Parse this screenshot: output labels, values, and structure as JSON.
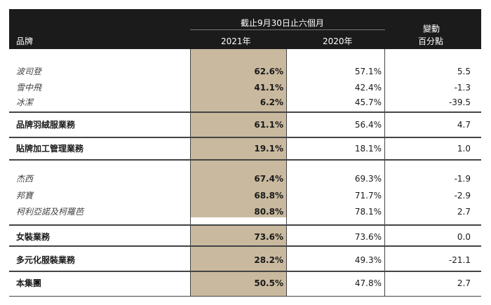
{
  "header": {
    "period": "截止9月30日止六個月",
    "brand_label": "品牌",
    "col_2021": "2021年",
    "col_2020": "2020年",
    "change_line1": "變動",
    "change_line2": "百分點"
  },
  "rows": [
    {
      "label": "波司登",
      "v2021": "62.6%",
      "v2020": "57.1%",
      "change": "5.5"
    },
    {
      "label": "雪中飛",
      "v2021": "41.1%",
      "v2020": "42.4%",
      "change": "-1.3"
    },
    {
      "label": "冰潔",
      "v2021": "6.2%",
      "v2020": "45.7%",
      "change": "-39.5"
    },
    {
      "label": "品牌羽絨服業務",
      "v2021": "61.1%",
      "v2020": "56.4%",
      "change": "4.7"
    },
    {
      "label": "貼牌加工管理業務",
      "v2021": "19.1%",
      "v2020": "18.1%",
      "change": "1.0"
    },
    {
      "label": "杰西",
      "v2021": "67.4%",
      "v2020": "69.3%",
      "change": "-1.9"
    },
    {
      "label": "邦寶",
      "v2021": "68.8%",
      "v2020": "71.7%",
      "change": "-2.9"
    },
    {
      "label": "柯利亞諾及柯羅芭",
      "v2021": "80.8%",
      "v2020": "78.1%",
      "change": "2.7"
    },
    {
      "label": "女裝業務",
      "v2021": "73.6%",
      "v2020": "73.6%",
      "change": "0.0"
    },
    {
      "label": "多元化服裝業務",
      "v2021": "28.2%",
      "v2020": "49.3%",
      "change": "-21.1"
    },
    {
      "label": "本集團",
      "v2021": "50.5%",
      "v2020": "47.8%",
      "change": "2.7"
    }
  ]
}
